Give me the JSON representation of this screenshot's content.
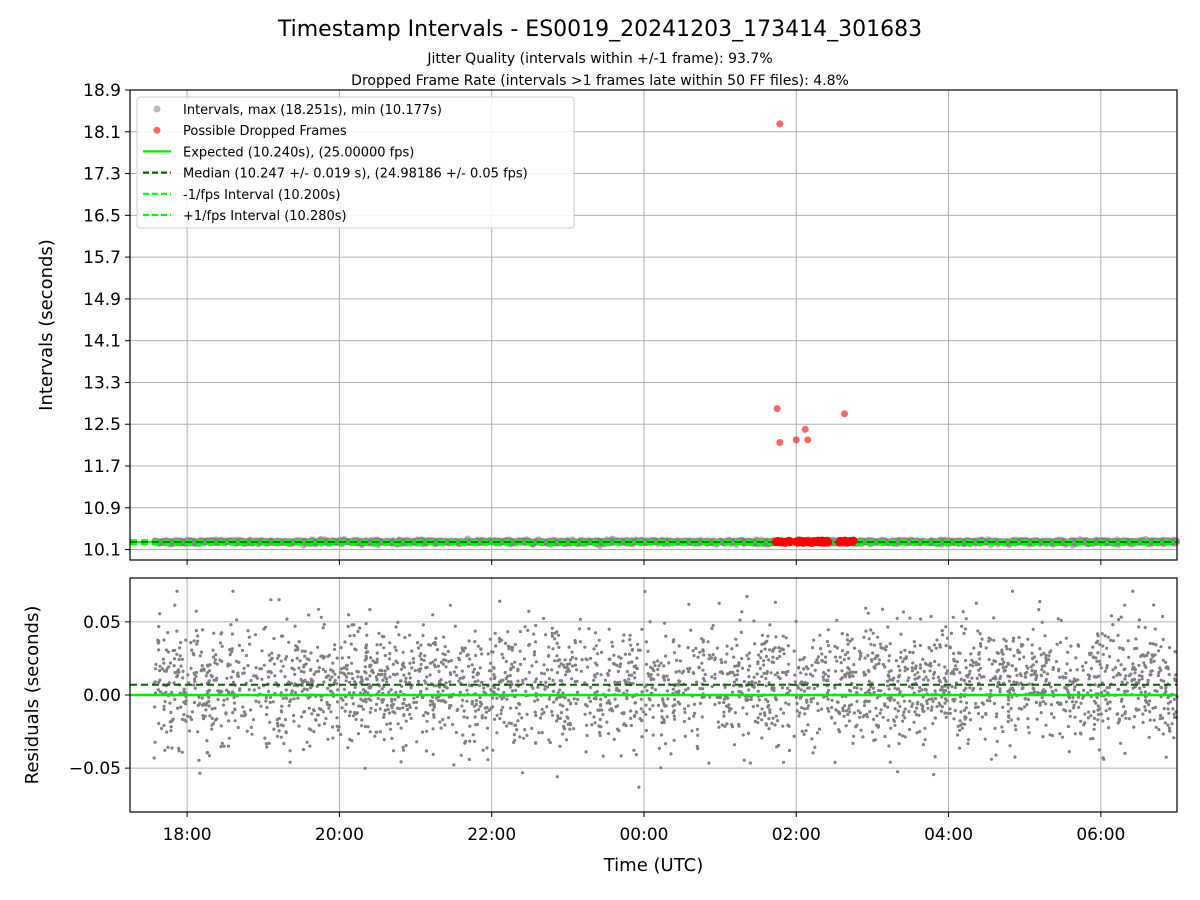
{
  "title": "Timestamp Intervals - ES0019_20241203_173414_301683",
  "subtitle_1": "Jitter Quality (intervals within +/-1 frame): 93.7%",
  "subtitle_2": "Dropped Frame Rate (intervals >1 frames late within 50 FF files): 4.8%",
  "colors": {
    "intervals": "#808080",
    "dropped": "#ff0000",
    "expected": "#00ee00",
    "median": "#006400",
    "fps_interval": "#00ff00",
    "grid": "#b0b0b0"
  },
  "chart_data": [
    {
      "type": "scatter",
      "xlabel": "",
      "ylabel": "Intervals (seconds)",
      "x_type": "time",
      "xlim": [
        "17:15",
        "07:00"
      ],
      "x_ticks": [
        "18:00",
        "20:00",
        "22:00",
        "00:00",
        "02:00",
        "04:00",
        "06:00"
      ],
      "ylim": [
        9.9,
        18.9
      ],
      "y_ticks": [
        "10.1",
        "10.9",
        "11.7",
        "12.5",
        "13.3",
        "14.1",
        "14.9",
        "15.7",
        "16.5",
        "17.3",
        "18.1",
        "18.9"
      ],
      "grid": true,
      "legend_position": "top-left",
      "legend": [
        {
          "label": "Intervals, max (18.251s), min (10.177s)",
          "kind": "marker",
          "color": "#808080"
        },
        {
          "label": "Possible Dropped Frames",
          "kind": "marker",
          "color": "#ff0000"
        },
        {
          "label": "Expected (10.240s), (25.00000 fps)",
          "kind": "solid",
          "color": "#00ee00"
        },
        {
          "label": "Median (10.247 +/- 0.019 s), (24.98186 +/- 0.05 fps)",
          "kind": "dashed",
          "color": "#006400"
        },
        {
          "label": "-1/fps Interval (10.200s)",
          "kind": "dashed",
          "color": "#00ff00"
        },
        {
          "label": "+1/fps Interval (10.280s)",
          "kind": "dashed",
          "color": "#00ff00"
        }
      ],
      "reference_lines": {
        "expected": 10.24,
        "median": 10.247,
        "minus_1_fps": 10.2,
        "plus_1_fps": 10.28
      },
      "series_intervals": {
        "x_start": "17:34",
        "x_end": "07:00",
        "y_min": 10.177,
        "y_max": 10.3
      },
      "dropped_frames": {
        "x": [
          "01:45",
          "01:47",
          "02:00",
          "02:07",
          "02:09",
          "02:38",
          "01:47"
        ],
        "y": [
          12.8,
          12.15,
          12.2,
          12.4,
          12.2,
          12.7,
          18.251
        ]
      },
      "dropped_clusters_near_baseline": [
        {
          "x_start": "01:44",
          "x_end": "01:55",
          "y": 10.25
        },
        {
          "x_start": "02:00",
          "x_end": "02:15",
          "y": 10.25
        },
        {
          "x_start": "02:15",
          "x_end": "02:25",
          "y": 10.25
        },
        {
          "x_start": "02:34",
          "x_end": "02:45",
          "y": 10.25
        }
      ]
    },
    {
      "type": "scatter",
      "xlabel": "Time (UTC)",
      "ylabel": "Residuals (seconds)",
      "x_type": "time",
      "xlim": [
        "17:15",
        "07:00"
      ],
      "x_ticks": [
        "18:00",
        "20:00",
        "22:00",
        "00:00",
        "02:00",
        "04:00",
        "06:00"
      ],
      "ylim": [
        -0.08,
        0.08
      ],
      "y_ticks": [
        "0.05",
        "0.00",
        "−0.05"
      ],
      "y_tick_values": [
        0.05,
        0.0,
        -0.05
      ],
      "grid": true,
      "reference_lines": {
        "expected": 0.0,
        "median": 0.007
      },
      "residuals": {
        "x_start": "17:34",
        "x_end": "07:00",
        "center": 0.007,
        "spread_std": 0.02,
        "min": -0.063,
        "max": 0.071
      }
    }
  ]
}
